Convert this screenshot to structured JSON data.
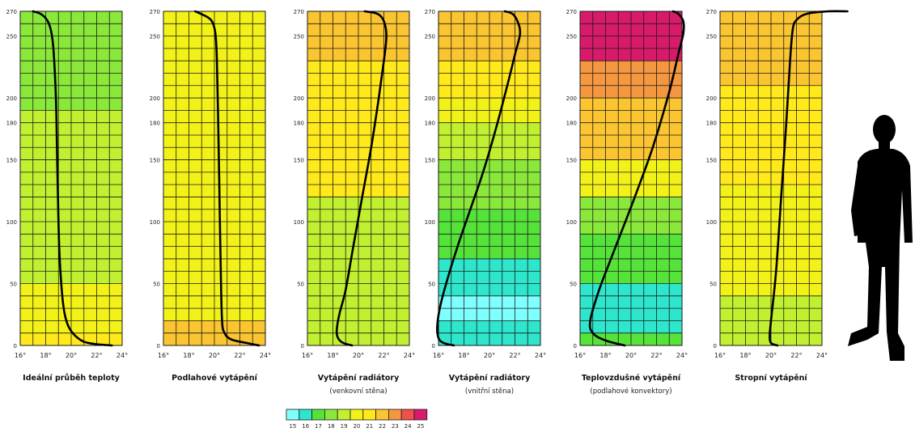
{
  "chart_data": {
    "type": "heatmap",
    "x_ticks": [
      "16°",
      "18°",
      "20°",
      "22°",
      "24°"
    ],
    "xlim": [
      16,
      24
    ],
    "y_ticks": [
      "0",
      "50",
      "100",
      "150",
      "180",
      "200",
      "250",
      "270"
    ],
    "ylim": [
      0,
      270
    ],
    "legend": {
      "values": [
        "15",
        "16",
        "17",
        "18",
        "19",
        "20",
        "21",
        "22",
        "23",
        "24",
        "25"
      ],
      "colors": [
        "#80ffff",
        "#2ee6cc",
        "#55e33a",
        "#8ae83a",
        "#c0f030",
        "#f2f218",
        "#ffe91a",
        "#fac530",
        "#f59640",
        "#f0504a",
        "#d81a6a"
      ]
    },
    "panels": [
      {
        "title": "Ideální průběh teploty",
        "subtitle": "",
        "bands": [
          {
            "from": 0,
            "to": 10,
            "temp": 21
          },
          {
            "from": 10,
            "to": 50,
            "temp": 20
          },
          {
            "from": 50,
            "to": 190,
            "temp": 19
          },
          {
            "from": 190,
            "to": 270,
            "temp": 18
          }
        ],
        "curve": [
          [
            23.2,
            0
          ],
          [
            22,
            1
          ],
          [
            21,
            3
          ],
          [
            20.3,
            8
          ],
          [
            19.8,
            15
          ],
          [
            19.5,
            25
          ],
          [
            19.3,
            40
          ],
          [
            19.1,
            70
          ],
          [
            19,
            100
          ],
          [
            18.9,
            150
          ],
          [
            18.8,
            200
          ],
          [
            18.6,
            240
          ],
          [
            18.4,
            255
          ],
          [
            18.1,
            263
          ],
          [
            17.6,
            268
          ],
          [
            17,
            270
          ]
        ]
      },
      {
        "title": "Podlahové vytápění",
        "subtitle": "",
        "bands": [
          {
            "from": 0,
            "to": 20,
            "temp": 22
          },
          {
            "from": 20,
            "to": 270,
            "temp": 20
          }
        ],
        "curve": [
          [
            23.5,
            0
          ],
          [
            22.5,
            2
          ],
          [
            21.3,
            5
          ],
          [
            20.8,
            10
          ],
          [
            20.6,
            20
          ],
          [
            20.5,
            60
          ],
          [
            20.4,
            120
          ],
          [
            20.3,
            180
          ],
          [
            20.2,
            230
          ],
          [
            20.1,
            250
          ],
          [
            19.9,
            260
          ],
          [
            19.5,
            265
          ],
          [
            18.5,
            270
          ]
        ]
      },
      {
        "title": "Vytápění radiátory",
        "subtitle": "(venkovní stěna)",
        "bands": [
          {
            "from": 0,
            "to": 120,
            "temp": 19
          },
          {
            "from": 120,
            "to": 230,
            "temp": 21
          },
          {
            "from": 230,
            "to": 270,
            "temp": 22
          }
        ],
        "curve": [
          [
            19.5,
            0
          ],
          [
            18.8,
            2
          ],
          [
            18.4,
            6
          ],
          [
            18.3,
            12
          ],
          [
            18.5,
            25
          ],
          [
            19,
            45
          ],
          [
            19.6,
            80
          ],
          [
            20.3,
            120
          ],
          [
            21,
            160
          ],
          [
            21.6,
            200
          ],
          [
            22,
            230
          ],
          [
            22.2,
            250
          ],
          [
            22,
            262
          ],
          [
            21.5,
            268
          ],
          [
            20.5,
            270
          ]
        ]
      },
      {
        "title": "Vytápění radiátory",
        "subtitle": "(vnitřní stěna)",
        "bands": [
          {
            "from": 0,
            "to": 20,
            "temp": 16
          },
          {
            "from": 20,
            "to": 40,
            "temp": 15
          },
          {
            "from": 40,
            "to": 70,
            "temp": 16
          },
          {
            "from": 70,
            "to": 110,
            "temp": 17
          },
          {
            "from": 110,
            "to": 150,
            "temp": 18
          },
          {
            "from": 150,
            "to": 180,
            "temp": 19
          },
          {
            "from": 180,
            "to": 200,
            "temp": 20
          },
          {
            "from": 200,
            "to": 230,
            "temp": 21
          },
          {
            "from": 230,
            "to": 270,
            "temp": 22
          }
        ],
        "curve": [
          [
            17.2,
            0
          ],
          [
            16.4,
            2
          ],
          [
            16,
            6
          ],
          [
            15.9,
            15
          ],
          [
            16.1,
            30
          ],
          [
            16.6,
            50
          ],
          [
            17.5,
            80
          ],
          [
            18.5,
            110
          ],
          [
            19.5,
            140
          ],
          [
            20.5,
            175
          ],
          [
            21.4,
            210
          ],
          [
            22,
            235
          ],
          [
            22.4,
            252
          ],
          [
            22.2,
            262
          ],
          [
            21.8,
            268
          ],
          [
            21.2,
            270
          ]
        ]
      },
      {
        "title": "Teplovzdušné vytápění",
        "subtitle": "(podlahové konvektory)",
        "bands": [
          {
            "from": 0,
            "to": 10,
            "temp": 17
          },
          {
            "from": 10,
            "to": 50,
            "temp": 16
          },
          {
            "from": 50,
            "to": 90,
            "temp": 17
          },
          {
            "from": 90,
            "to": 120,
            "temp": 18
          },
          {
            "from": 120,
            "to": 150,
            "temp": 20
          },
          {
            "from": 150,
            "to": 200,
            "temp": 22
          },
          {
            "from": 200,
            "to": 230,
            "temp": 23
          },
          {
            "from": 230,
            "to": 270,
            "temp": 25
          }
        ],
        "curve": [
          [
            19.5,
            0
          ],
          [
            18,
            4
          ],
          [
            17,
            10
          ],
          [
            16.8,
            20
          ],
          [
            17.5,
            45
          ],
          [
            18.8,
            80
          ],
          [
            20.3,
            120
          ],
          [
            21.7,
            160
          ],
          [
            23,
            205
          ],
          [
            23.7,
            235
          ],
          [
            24.1,
            252
          ],
          [
            24.1,
            262
          ],
          [
            23.7,
            268
          ],
          [
            23.3,
            270
          ]
        ]
      },
      {
        "title": "Stropní vytápění",
        "subtitle": "",
        "bands": [
          {
            "from": 0,
            "to": 40,
            "temp": 19
          },
          {
            "from": 40,
            "to": 130,
            "temp": 20
          },
          {
            "from": 130,
            "to": 210,
            "temp": 21
          },
          {
            "from": 210,
            "to": 270,
            "temp": 22
          }
        ],
        "curve": [
          [
            20.5,
            0
          ],
          [
            20,
            2
          ],
          [
            19.9,
            8
          ],
          [
            20,
            20
          ],
          [
            20.4,
            60
          ],
          [
            20.8,
            120
          ],
          [
            21.2,
            180
          ],
          [
            21.5,
            230
          ],
          [
            21.7,
            255
          ],
          [
            22,
            263
          ],
          [
            22.8,
            268
          ],
          [
            24.5,
            270
          ],
          [
            26,
            270
          ]
        ]
      }
    ]
  },
  "figure": {
    "icon": "human-silhouette-icon"
  }
}
